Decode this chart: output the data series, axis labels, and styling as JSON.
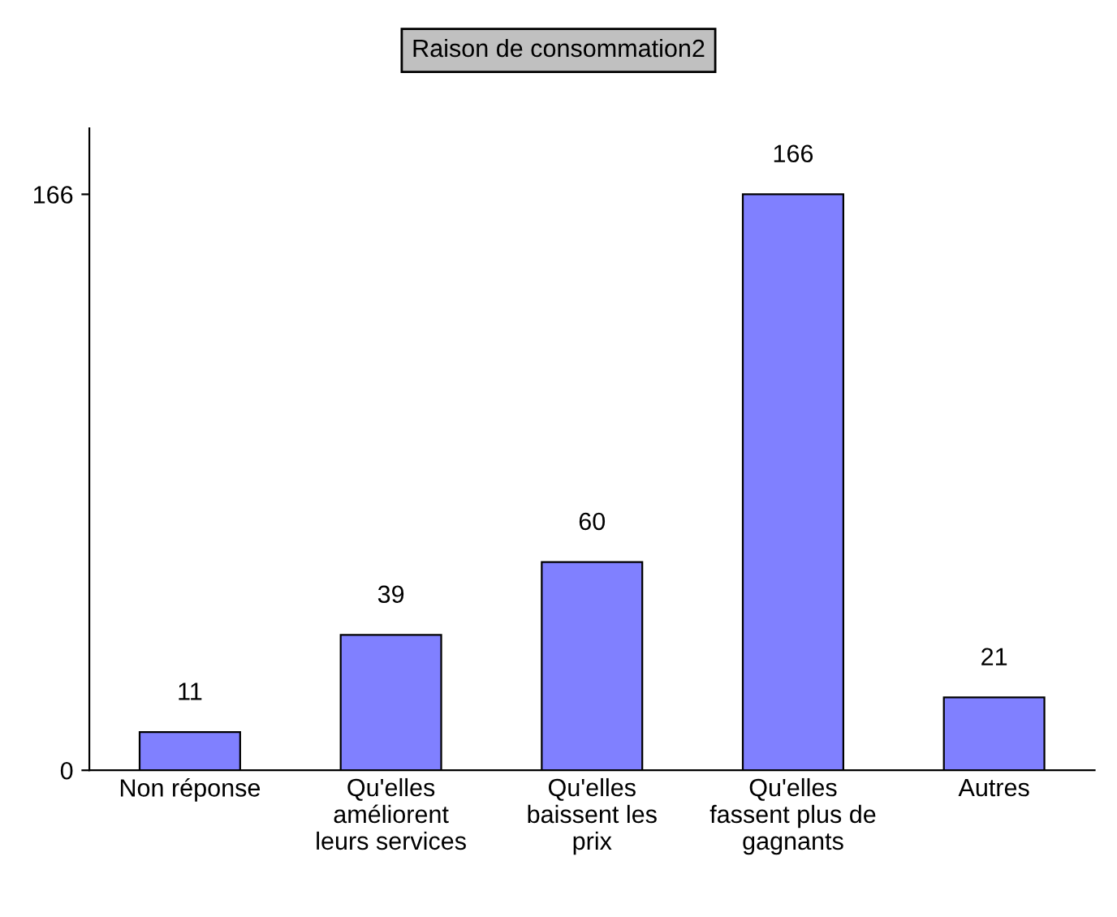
{
  "chart_data": {
    "type": "bar",
    "title": "Raison de consommation2",
    "categories": [
      "Non réponse",
      "Qu'elles\naméliorent\nleurs services",
      "Qu'elles\nbaissent les\nprix",
      "Qu'elles\nfassent plus de\ngagnants",
      "Autres"
    ],
    "values": [
      11,
      39,
      60,
      166,
      21
    ],
    "color": "#8080ff",
    "ylim": [
      0,
      185
    ],
    "yticks": [
      0,
      166
    ],
    "data_labels": true,
    "grid": false,
    "legend": false
  }
}
